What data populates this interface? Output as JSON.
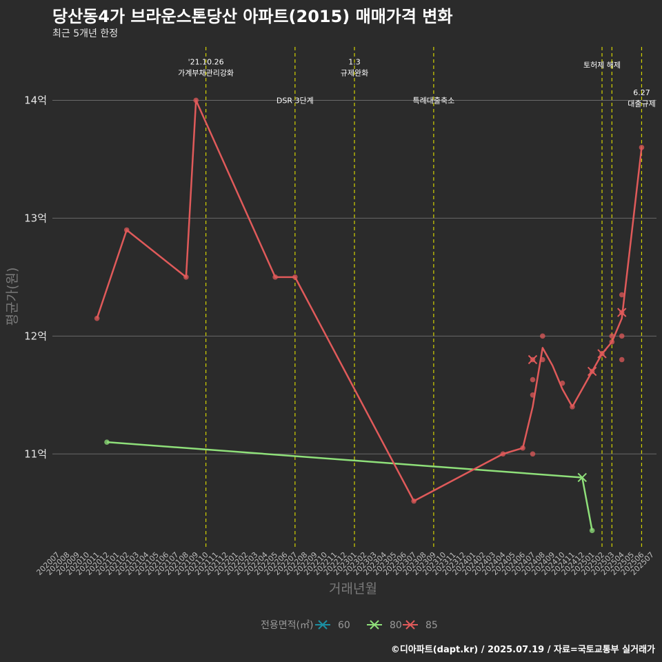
{
  "title": "당산동4가 브라운스톤당산 아파트(2015) 매매가격 변화",
  "subtitle": "최근 5개년 한정",
  "caption": "©디아파트(dapt.kr) / 2025.07.19 / 자료=국토교통부 실거래가",
  "chart_data": {
    "type": "line",
    "xlabel": "거래년월",
    "ylabel": "평균가(원)",
    "x_categories": [
      "202007",
      "202008",
      "202009",
      "202010",
      "202011",
      "202012",
      "202101",
      "202102",
      "202103",
      "202104",
      "202105",
      "202106",
      "202107",
      "202108",
      "202109",
      "202110",
      "202111",
      "202112",
      "202201",
      "202202",
      "202203",
      "202204",
      "202205",
      "202206",
      "202207",
      "202208",
      "202209",
      "202210",
      "202211",
      "202212",
      "202301",
      "202302",
      "202303",
      "202304",
      "202305",
      "202306",
      "202307",
      "202308",
      "202309",
      "202310",
      "202311",
      "202312",
      "202401",
      "202402",
      "202403",
      "202404",
      "202405",
      "202406",
      "202407",
      "202408",
      "202409",
      "202410",
      "202411",
      "202412",
      "202501",
      "202502",
      "202503",
      "202504",
      "202505",
      "202506",
      "202507"
    ],
    "y_ticks": [
      {
        "value": 11,
        "label": "11억"
      },
      {
        "value": 12,
        "label": "12억"
      },
      {
        "value": 13,
        "label": "13억"
      },
      {
        "value": 14,
        "label": "14억"
      }
    ],
    "ylim": [
      10.2,
      14.5
    ],
    "grid": true,
    "legend": {
      "title": "전용면적(㎡)",
      "placement": "bottom",
      "items": [
        {
          "label": "60",
          "color": "#1b8fa3"
        },
        {
          "label": "80",
          "color": "#8fe07a"
        },
        {
          "label": "85",
          "color": "#e05a5a"
        }
      ]
    },
    "vlines": [
      {
        "x": "202110",
        "labels": [
          "'21.10.26",
          "가계부채관리강화"
        ],
        "label_y": 14.28
      },
      {
        "x": "202207",
        "labels": [
          "DSR 3단계"
        ],
        "label_y": 14.0
      },
      {
        "x": "202301",
        "labels": [
          "1.3",
          "규제완화"
        ],
        "label_y": 14.28
      },
      {
        "x": "202309",
        "labels": [
          "특례대출축소"
        ],
        "label_y": 14.0
      },
      {
        "x": "202502",
        "labels": [
          "토허제 해제"
        ],
        "label_y": 14.3
      },
      {
        "x": "202503",
        "labels": [],
        "label_y": 0
      },
      {
        "x": "202506",
        "labels": [
          "6.27",
          "대출규제"
        ],
        "label_y": 14.02
      }
    ],
    "series": [
      {
        "name": "80",
        "color": "#8fe07a",
        "line": [
          [
            "202012",
            11.1
          ],
          [
            "202412",
            10.8
          ],
          [
            "202501",
            10.35
          ]
        ],
        "points": [
          [
            "202012",
            11.1
          ],
          [
            "202501",
            10.35
          ]
        ],
        "cross_points": [
          [
            "202412",
            10.8
          ]
        ]
      },
      {
        "name": "85",
        "color": "#e05a5a",
        "line": [
          [
            "202011",
            12.15
          ],
          [
            "202102",
            12.9
          ],
          [
            "202108",
            12.5
          ],
          [
            "202109",
            14.0
          ],
          [
            "202205",
            12.5
          ],
          [
            "202207",
            12.5
          ],
          [
            "202307",
            10.6
          ],
          [
            "202404",
            11.0
          ],
          [
            "202406",
            11.05
          ],
          [
            "202407",
            11.4
          ],
          [
            "202408",
            11.9
          ],
          [
            "202409",
            11.75
          ],
          [
            "202410",
            11.55
          ],
          [
            "202411",
            11.4
          ],
          [
            "202501",
            11.7
          ],
          [
            "202502",
            11.85
          ],
          [
            "202503",
            11.95
          ],
          [
            "202504",
            12.15
          ],
          [
            "202506",
            13.6
          ]
        ],
        "points": [
          [
            "202011",
            12.15
          ],
          [
            "202102",
            12.9
          ],
          [
            "202108",
            12.5
          ],
          [
            "202109",
            14.0
          ],
          [
            "202205",
            12.5
          ],
          [
            "202207",
            12.5
          ],
          [
            "202307",
            10.6
          ],
          [
            "202404",
            11.0
          ],
          [
            "202406",
            11.05
          ],
          [
            "202407",
            11.0
          ],
          [
            "202407",
            11.5
          ],
          [
            "202407",
            11.63
          ],
          [
            "202407",
            11.8
          ],
          [
            "202408",
            12.0
          ],
          [
            "202408",
            11.8
          ],
          [
            "202410",
            11.6
          ],
          [
            "202411",
            11.4
          ],
          [
            "202501",
            11.7
          ],
          [
            "202502",
            11.85
          ],
          [
            "202503",
            11.95
          ],
          [
            "202503",
            12.0
          ],
          [
            "202504",
            12.35
          ],
          [
            "202504",
            12.2
          ],
          [
            "202504",
            12.0
          ],
          [
            "202504",
            11.8
          ],
          [
            "202506",
            13.6
          ]
        ],
        "cross_points": [
          [
            "202407",
            11.8
          ],
          [
            "202501",
            11.7
          ],
          [
            "202502",
            11.85
          ],
          [
            "202504",
            12.2
          ]
        ]
      }
    ]
  }
}
